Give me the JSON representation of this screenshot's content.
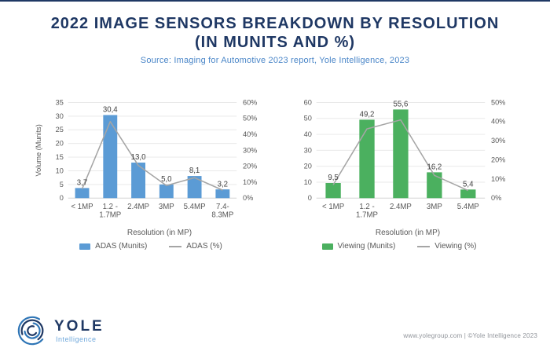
{
  "page": {
    "title_line1": "2022 IMAGE SENSORS BREAKDOWN BY RESOLUTION",
    "title_line2": "(IN MUNITS AND %)",
    "source": "Source: Imaging for Automotive 2023 report, Yole Intelligence, 2023"
  },
  "chart_data": [
    {
      "type": "bar",
      "name": "ADAS",
      "categories": [
        "< 1MP",
        "1.2 -\n1.7MP",
        "2.4MP",
        "3MP",
        "5.4MP",
        "7.4-\n8.3MP"
      ],
      "bar_series": {
        "name": "ADAS (Munits)",
        "values": [
          3.7,
          30.4,
          13.0,
          5.0,
          8.1,
          3.2
        ],
        "labels": [
          "3,7",
          "30,4",
          "13,0",
          "5,0",
          "8,1",
          "3,2"
        ],
        "color": "#5B9BD5"
      },
      "line_series": {
        "name": "ADAS (%)",
        "values": [
          5.8,
          48.0,
          20.5,
          7.9,
          12.8,
          5.0
        ],
        "color": "#A5A5A5"
      },
      "xlabel": "Resolution (in MP)",
      "ylabel": "Volume (Munits)",
      "y_left_axis": {
        "min": 0,
        "max": 35,
        "step": 5
      },
      "y_right_axis": {
        "min": 0,
        "max": 60,
        "step": 10,
        "suffix": "%"
      },
      "grid": true,
      "legend_position": "bottom"
    },
    {
      "type": "bar",
      "name": "Viewing",
      "categories": [
        "< 1MP",
        "1.2 -\n1.7MP",
        "2.4MP",
        "3MP",
        "5.4MP"
      ],
      "bar_series": {
        "name": "Viewing (Munits)",
        "values": [
          9.5,
          49.2,
          55.6,
          16.2,
          5.4
        ],
        "labels": [
          "9,5",
          "49,2",
          "55,6",
          "16,2",
          "5,4"
        ],
        "color": "#4BB05F"
      },
      "line_series": {
        "name": "Viewing (%)",
        "values": [
          7.0,
          36.2,
          40.9,
          11.9,
          4.0
        ],
        "color": "#A5A5A5"
      },
      "xlabel": "Resolution (in MP)",
      "ylabel": "",
      "y_left_axis": {
        "min": 0,
        "max": 60,
        "step": 10
      },
      "y_right_axis": {
        "min": 0,
        "max": 50,
        "step": 10,
        "suffix": "%"
      },
      "grid": true,
      "legend_position": "bottom"
    }
  ],
  "footer": {
    "brand": "YOLE",
    "brand_sub": "Intelligence",
    "credit": "www.yolegroup.com | ©Yole Intelligence 2023"
  },
  "colors": {
    "title": "#1F3864",
    "source": "#4A86C8",
    "axis_text": "#595959",
    "data_label": "#404040",
    "gridline": "#E9E9E9",
    "baseline": "#D6D6D6",
    "adas_bar": "#5B9BD5",
    "viewing_bar": "#4BB05F",
    "trend_line": "#A5A5A5"
  }
}
